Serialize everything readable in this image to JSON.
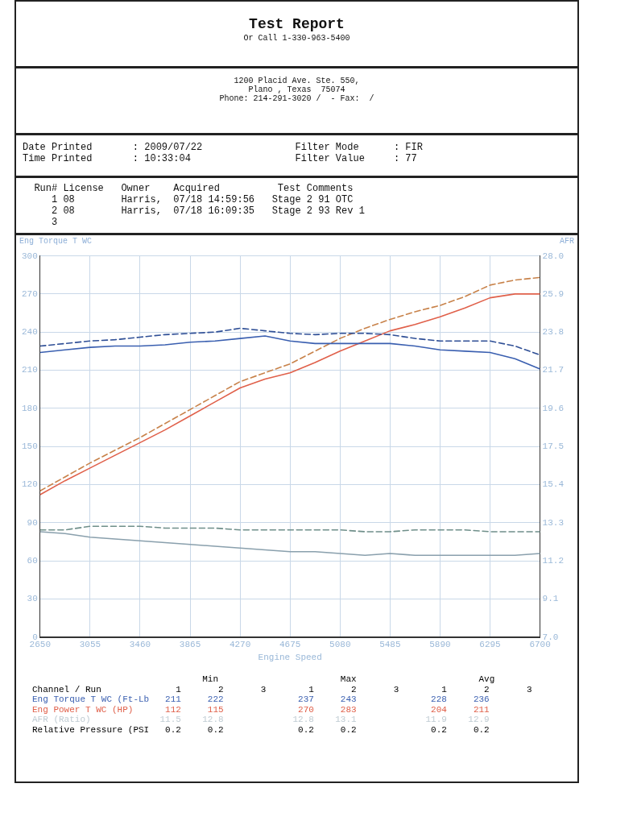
{
  "chart_data": {
    "type": "line",
    "title": "Test Report",
    "subtitle": "Or Call 1-330-963-5400",
    "xlabel": "Engine Speed",
    "ylabel": "Eng Torque T WC",
    "y2label": "AFR",
    "x": [
      2650,
      2852,
      3055,
      3257,
      3460,
      3662,
      3865,
      4067,
      4270,
      4472,
      4675,
      4877,
      5080,
      5282,
      5485,
      5687,
      5890,
      6092,
      6295,
      6497,
      6700
    ],
    "series": [
      {
        "color": "#3a5fb0",
        "line_style": "solid",
        "values": [
          224,
          226,
          228,
          229,
          229,
          230,
          232,
          233,
          235,
          237,
          233,
          231,
          231,
          231,
          231,
          229,
          226,
          225,
          224,
          219,
          211
        ]
      },
      {
        "color": "#2f4f96",
        "line_style": "dashed",
        "values": [
          229,
          231,
          233,
          234,
          236,
          238,
          239,
          240,
          243,
          241,
          239,
          238,
          239,
          239,
          238,
          235,
          233,
          233,
          233,
          229,
          222
        ]
      },
      {
        "color": "#e0604a",
        "line_style": "solid",
        "values": [
          112,
          123,
          133,
          143,
          153,
          163,
          174,
          185,
          196,
          203,
          208,
          216,
          225,
          233,
          241,
          246,
          252,
          259,
          267,
          270,
          270
        ]
      },
      {
        "color": "#c8824a",
        "line_style": "dashed",
        "values": [
          115,
          126,
          137,
          147,
          157,
          168,
          179,
          190,
          201,
          208,
          215,
          225,
          235,
          243,
          250,
          256,
          261,
          268,
          277,
          281,
          283
        ]
      },
      {
        "color": "#8aa0ad",
        "line_style": "solid",
        "axis": "y2",
        "values": [
          12.8,
          12.7,
          12.5,
          12.4,
          12.3,
          12.2,
          12.1,
          12.0,
          11.9,
          11.8,
          11.7,
          11.7,
          11.6,
          11.5,
          11.6,
          11.5,
          11.5,
          11.5,
          11.5,
          11.5,
          11.6
        ]
      },
      {
        "color": "#6f8f8a",
        "line_style": "dashed",
        "axis": "y2",
        "values": [
          12.9,
          12.9,
          13.1,
          13.1,
          13.1,
          13.0,
          13.0,
          13.0,
          12.9,
          12.9,
          12.9,
          12.9,
          12.9,
          12.8,
          12.8,
          12.9,
          12.9,
          12.9,
          12.8,
          12.8,
          12.8
        ]
      }
    ],
    "xlim": [
      2650,
      6700
    ],
    "xticks": [
      2650,
      3055,
      3460,
      3865,
      4270,
      4675,
      5080,
      5485,
      5890,
      6295,
      6700
    ],
    "ylim": [
      0,
      300
    ],
    "yticks": [
      0,
      30,
      60,
      90,
      120,
      150,
      180,
      210,
      240,
      270,
      300
    ],
    "y2lim": [
      7,
      28
    ],
    "y2ticks": [
      {
        "value": 7,
        "label": "7.0"
      },
      9.1,
      11.2,
      13.3,
      15.4,
      17.5,
      19.6,
      21.7,
      23.8,
      25.9,
      {
        "value": 28,
        "label": "28.0"
      }
    ],
    "grid": true,
    "legend": false,
    "marker": "none",
    "annotations": [
      "1200 Placid Ave. Ste. 550,",
      "Plano , Texas  75074",
      "Phone: 214-291-3020 /  - Fax:  /",
      "Date Printed       : 2009/07/22                Filter Mode      : FIR",
      "Time Printed       : 10:33:04                  Filter Value     : 77",
      "  Run# License   Owner    Acquired          Test Comments",
      "     1 08        Harris,  07/18 14:59:56   Stage 2 91 OTC",
      "     2 08        Harris,  07/18 16:09:35   Stage 2 93 Rev 1",
      "     3",
      "                                Min                       Max                       Avg",
      "Channel / Run              1       2       3        1       2       3        1       2       3",
      "Eng Torque T WC (Ft-Lb   211     222              237     243              228     236",
      "Eng Power T WC (HP)      112     115              270     283              204     211",
      "AFR (Ratio)             11.5    12.8             12.8    13.1             11.9    12.9",
      "Relative Pressure (PSI   0.2     0.2              0.2     0.2              0.2     0.2"
    ]
  }
}
